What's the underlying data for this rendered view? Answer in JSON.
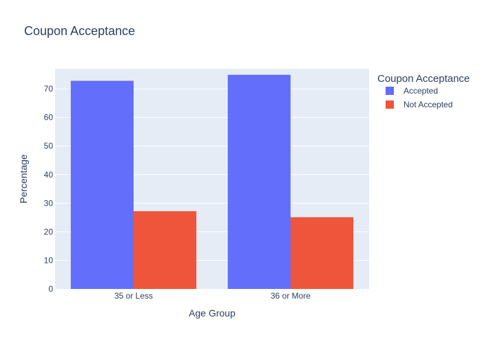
{
  "chart_data": {
    "type": "bar",
    "title": "Coupon Acceptance",
    "xlabel": "Age Group",
    "ylabel": "Percentage",
    "categories": [
      "35 or Less",
      "36 or More"
    ],
    "series": [
      {
        "name": "Accepted",
        "values": [
          72.8,
          74.9
        ],
        "color": "#636efa"
      },
      {
        "name": "Not Accepted",
        "values": [
          27.2,
          25.1
        ],
        "color": "#ef553b"
      }
    ],
    "ylim": [
      0,
      77
    ],
    "yticks": [
      0,
      10,
      20,
      30,
      40,
      50,
      60,
      70
    ],
    "grid": true,
    "legend": {
      "title": "Coupon Acceptance",
      "placement": "top-right"
    },
    "plot_background": "#e5ecf6"
  }
}
